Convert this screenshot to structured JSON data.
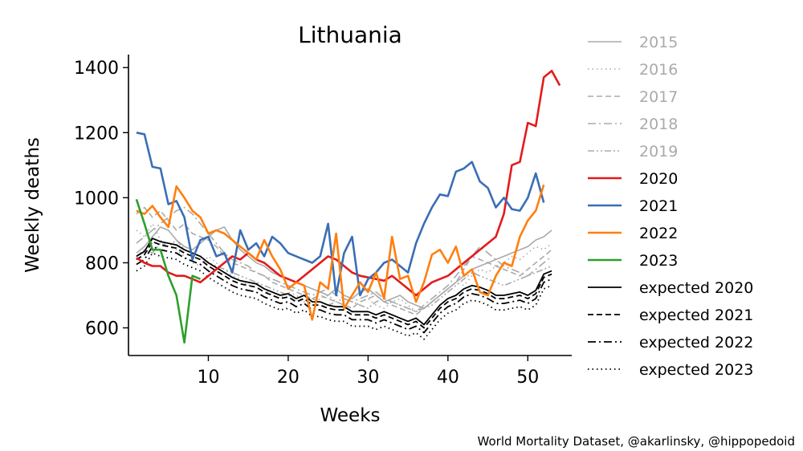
{
  "chart_data": {
    "type": "line",
    "title": "Lithuania",
    "xlabel": "Weeks",
    "ylabel": "Weekly deaths",
    "xlim": [
      0,
      55.5
    ],
    "ylim": [
      515,
      1440
    ],
    "xticks": [
      10,
      20,
      30,
      40,
      50
    ],
    "yticks": [
      600,
      800,
      1000,
      1200,
      1400
    ],
    "grid": false,
    "legend_position": "outside-right",
    "credit": "World Mortality Dataset, @akarlinsky, @hippopedoid",
    "series": [
      {
        "name": "2015",
        "color": "#aaaaaa",
        "dash": "solid",
        "x_start": 1,
        "values": [
          830,
          850,
          880,
          910,
          900,
          870,
          850,
          840,
          860,
          880,
          900,
          910,
          870,
          840,
          820,
          800,
          790,
          770,
          760,
          750,
          740,
          730,
          720,
          710,
          700,
          720,
          700,
          690,
          710,
          720,
          700,
          680,
          690,
          700,
          680,
          670,
          660,
          680,
          700,
          720,
          740,
          760,
          780,
          790,
          800,
          810,
          820,
          830,
          840,
          850,
          870,
          880,
          900
        ]
      },
      {
        "name": "2016",
        "color": "#aaaaaa",
        "dash": "dotted",
        "x_start": 1,
        "values": [
          900,
          880,
          920,
          870,
          850,
          840,
          820,
          800,
          790,
          820,
          800,
          780,
          760,
          750,
          730,
          740,
          720,
          700,
          690,
          710,
          700,
          680,
          670,
          690,
          700,
          680,
          670,
          660,
          680,
          690,
          670,
          660,
          680,
          690,
          670,
          650,
          660,
          680,
          700,
          720,
          740,
          730,
          760,
          780,
          770,
          790,
          800,
          820,
          810,
          830,
          850,
          840,
          860
        ]
      },
      {
        "name": "2017",
        "color": "#aaaaaa",
        "dash": "dashed",
        "x_start": 1,
        "values": [
          950,
          970,
          940,
          960,
          930,
          900,
          920,
          890,
          880,
          870,
          850,
          820,
          800,
          790,
          780,
          770,
          760,
          740,
          730,
          720,
          710,
          700,
          690,
          700,
          690,
          680,
          670,
          660,
          680,
          690,
          700,
          680,
          670,
          660,
          650,
          640,
          660,
          680,
          700,
          720,
          740,
          780,
          820,
          810,
          800,
          790,
          780,
          770,
          760,
          780,
          800,
          820,
          840
        ]
      },
      {
        "name": "2018",
        "color": "#aaaaaa",
        "dash": "dashdot",
        "x_start": 1,
        "values": [
          860,
          880,
          900,
          920,
          940,
          960,
          970,
          950,
          920,
          890,
          860,
          830,
          810,
          800,
          790,
          770,
          760,
          750,
          740,
          730,
          720,
          710,
          700,
          710,
          720,
          700,
          690,
          680,
          690,
          700,
          710,
          690,
          680,
          670,
          660,
          650,
          670,
          690,
          710,
          730,
          760,
          790,
          820,
          850,
          830,
          810,
          790,
          780,
          770,
          760,
          780,
          800,
          820
        ]
      },
      {
        "name": "2019",
        "color": "#aaaaaa",
        "dash": "dashdotdot",
        "x_start": 1,
        "values": [
          820,
          840,
          830,
          860,
          850,
          870,
          840,
          830,
          820,
          800,
          790,
          780,
          770,
          760,
          750,
          740,
          730,
          720,
          710,
          700,
          690,
          700,
          690,
          680,
          670,
          680,
          690,
          680,
          670,
          660,
          680,
          690,
          680,
          670,
          660,
          650,
          660,
          670,
          690,
          710,
          730,
          750,
          770,
          760,
          750,
          740,
          730,
          740,
          750,
          760,
          770,
          780,
          790
        ]
      },
      {
        "name": "2020",
        "color": "#e31a1c",
        "dash": "solid",
        "x_start": 1,
        "values": [
          815,
          800,
          790,
          790,
          770,
          760,
          760,
          750,
          740,
          760,
          780,
          800,
          820,
          810,
          830,
          810,
          800,
          780,
          760,
          750,
          740,
          760,
          780,
          800,
          820,
          810,
          790,
          770,
          760,
          755,
          750,
          745,
          760,
          740,
          720,
          700,
          720,
          740,
          750,
          760,
          780,
          800,
          820,
          840,
          860,
          880,
          950,
          1100,
          1110,
          1230,
          1220,
          1370,
          1390,
          1345
        ]
      },
      {
        "name": "2021",
        "color": "#3a6eb5",
        "dash": "solid",
        "x_start": 1,
        "values": [
          1200,
          1195,
          1095,
          1090,
          980,
          990,
          940,
          810,
          870,
          880,
          820,
          830,
          770,
          900,
          840,
          860,
          820,
          880,
          860,
          830,
          820,
          810,
          800,
          820,
          920,
          700,
          830,
          880,
          700,
          750,
          770,
          800,
          810,
          790,
          770,
          860,
          920,
          970,
          1010,
          1005,
          1080,
          1090,
          1110,
          1050,
          1030,
          970,
          1000,
          965,
          960,
          1000,
          1075,
          985
        ]
      },
      {
        "name": "2022",
        "color": "#ff7f0e",
        "dash": "solid",
        "x_start": 1,
        "values": [
          960,
          950,
          975,
          940,
          910,
          1035,
          1000,
          960,
          940,
          890,
          900,
          890,
          870,
          850,
          830,
          810,
          870,
          820,
          780,
          720,
          740,
          730,
          625,
          740,
          720,
          890,
          660,
          700,
          740,
          710,
          770,
          690,
          880,
          750,
          760,
          680,
          740,
          825,
          840,
          800,
          850,
          760,
          780,
          710,
          700,
          760,
          800,
          790,
          880,
          930,
          960,
          1040
        ]
      },
      {
        "name": "2023",
        "color": "#2ca02c",
        "dash": "solid",
        "x_start": 1,
        "values": [
          995,
          920,
          840,
          840,
          760,
          700,
          555,
          760,
          750
        ]
      },
      {
        "name": "expected 2020",
        "color": "#000000",
        "dash": "solid",
        "x_start": 1,
        "values": [
          820,
          835,
          875,
          865,
          860,
          855,
          840,
          830,
          820,
          800,
          785,
          770,
          755,
          745,
          740,
          735,
          720,
          710,
          700,
          705,
          690,
          700,
          680,
          680,
          670,
          665,
          665,
          650,
          650,
          650,
          640,
          650,
          640,
          630,
          620,
          630,
          610,
          640,
          670,
          690,
          700,
          720,
          730,
          725,
          715,
          700,
          700,
          705,
          710,
          700,
          715,
          765,
          775
        ]
      },
      {
        "name": "expected 2021",
        "color": "#000000",
        "dash": "dashed",
        "x_start": 1,
        "values": [
          810,
          825,
          865,
          855,
          850,
          845,
          830,
          820,
          810,
          790,
          775,
          760,
          745,
          735,
          730,
          725,
          710,
          700,
          690,
          695,
          680,
          690,
          670,
          670,
          660,
          655,
          655,
          640,
          640,
          640,
          630,
          640,
          630,
          620,
          610,
          620,
          600,
          630,
          660,
          680,
          690,
          710,
          720,
          715,
          705,
          690,
          690,
          695,
          700,
          690,
          705,
          755,
          765
        ]
      },
      {
        "name": "expected 2022",
        "color": "#000000",
        "dash": "dashdot",
        "x_start": 1,
        "values": [
          795,
          810,
          850,
          840,
          835,
          830,
          815,
          805,
          795,
          775,
          760,
          745,
          730,
          720,
          715,
          710,
          695,
          685,
          675,
          680,
          665,
          675,
          655,
          655,
          645,
          640,
          640,
          625,
          625,
          625,
          615,
          625,
          615,
          605,
          595,
          605,
          585,
          615,
          645,
          665,
          675,
          695,
          705,
          700,
          690,
          675,
          675,
          680,
          685,
          675,
          690,
          740,
          750
        ]
      },
      {
        "name": "expected 2023",
        "color": "#000000",
        "dash": "dotted",
        "x_start": 1,
        "values": [
          775,
          790,
          830,
          820,
          815,
          810,
          795,
          785,
          775,
          755,
          740,
          725,
          710,
          700,
          695,
          690,
          675,
          665,
          655,
          660,
          645,
          655,
          635,
          635,
          625,
          620,
          620,
          605,
          605,
          605,
          595,
          605,
          595,
          585,
          575,
          585,
          565,
          595,
          625,
          645,
          655,
          675,
          685,
          680,
          670,
          655,
          655,
          660,
          665,
          655,
          670,
          720,
          730
        ]
      }
    ]
  }
}
